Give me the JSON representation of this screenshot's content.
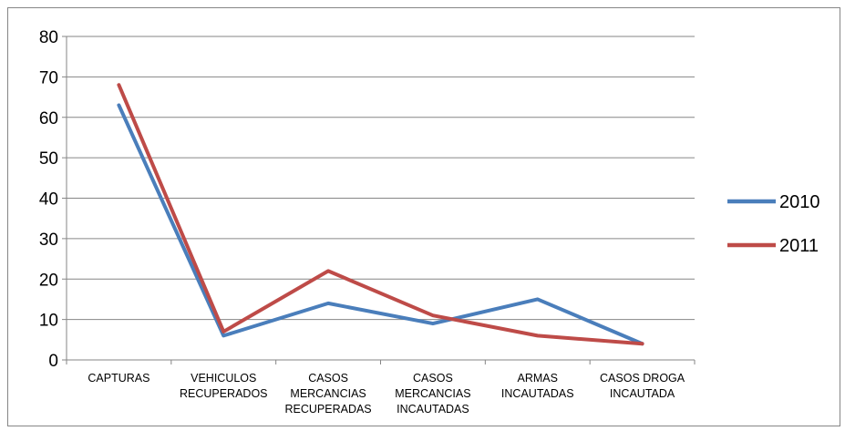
{
  "chart_data": {
    "type": "line",
    "categories": [
      [
        "CAPTURAS"
      ],
      [
        "VEHICULOS",
        "RECUPERADOS"
      ],
      [
        "CASOS",
        "MERCANCIAS",
        "RECUPERADAS"
      ],
      [
        "CASOS",
        "MERCANCIAS",
        "INCAUTADAS"
      ],
      [
        "ARMAS",
        "INCAUTADAS"
      ],
      [
        "CASOS DROGA",
        "INCAUTADA"
      ]
    ],
    "series": [
      {
        "name": "2010",
        "color": "#4a7ebb",
        "values": [
          63,
          6,
          14,
          9,
          15,
          4
        ]
      },
      {
        "name": "2011",
        "color": "#be4b48",
        "values": [
          68,
          7,
          22,
          11,
          6,
          4
        ]
      }
    ],
    "yticks": [
      0,
      10,
      20,
      30,
      40,
      50,
      60,
      70,
      80
    ],
    "ylim": [
      0,
      80
    ],
    "grid": true,
    "legend": "right"
  }
}
